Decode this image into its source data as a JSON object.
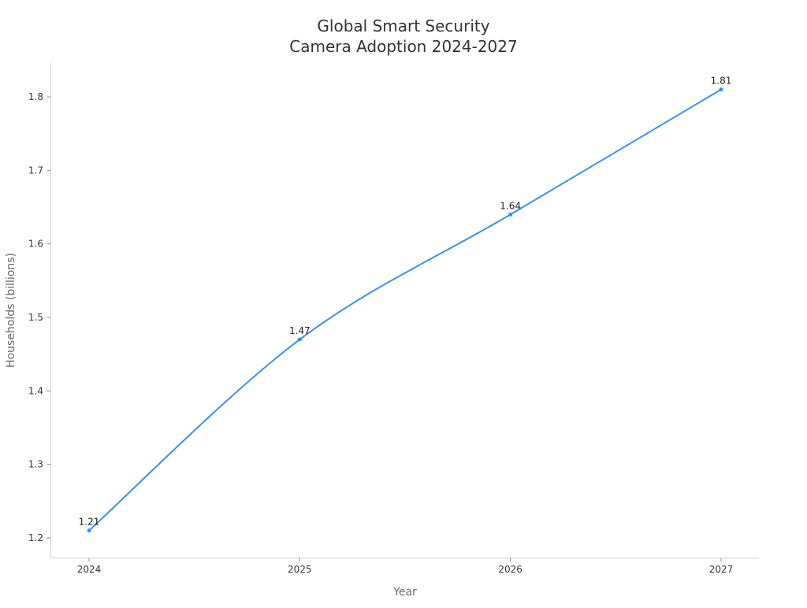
{
  "chart_data": {
    "type": "line",
    "title_lines": [
      "Global Smart Security",
      "Camera Adoption 2024-2027"
    ],
    "xlabel": "Year",
    "ylabel": "Households (billions)",
    "categories": [
      "2024",
      "2025",
      "2026",
      "2027"
    ],
    "values": [
      1.21,
      1.47,
      1.64,
      1.81
    ],
    "data_labels": [
      "1.21",
      "1.47",
      "1.64",
      "1.81"
    ],
    "yticks": [
      "1.2",
      "1.3",
      "1.4",
      "1.5",
      "1.6",
      "1.7",
      "1.8"
    ],
    "ylim": [
      1.17,
      1.85
    ],
    "grid": false,
    "smooth": true,
    "line_color": "#3a91e6"
  }
}
